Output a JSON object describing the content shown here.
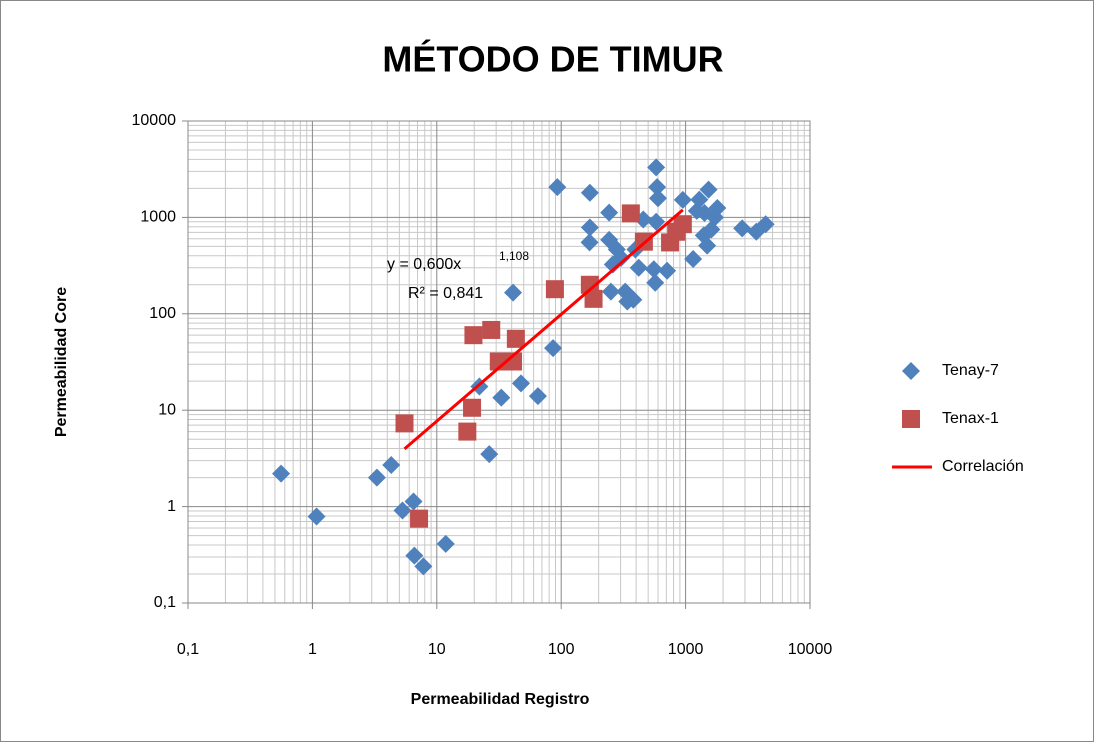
{
  "chart_data": {
    "type": "scatter",
    "title": "MÉTODO DE TIMUR",
    "xlabel": "Permeabilidad Registro",
    "ylabel": "Permeabilidad Core",
    "xscale": "log",
    "yscale": "log",
    "grid": true,
    "legend": "right",
    "xlim": [
      0.1,
      10000
    ],
    "ylim": [
      0.1,
      10000
    ],
    "xticks": [
      {
        "value": 0.1,
        "label": "0,1"
      },
      1,
      10,
      100,
      1000,
      10000
    ],
    "yticks": [
      {
        "value": 0.1,
        "label": "0,1"
      },
      1,
      10,
      100,
      1000,
      10000
    ],
    "annotations": {
      "equation": "y = 0,600x",
      "equation_exponent": "1,108",
      "r2": "R² = 0,841"
    },
    "series": [
      {
        "name": "Tenay-7",
        "color": "#4f81bd",
        "marker": "diamond",
        "x": [
          0.56,
          1.08,
          3.3,
          4.3,
          5.3,
          6.5,
          6.6,
          7.8,
          11.8,
          22,
          26.4,
          33,
          41,
          47.5,
          65,
          86,
          93,
          169,
          170,
          170,
          243,
          243,
          251,
          260,
          280,
          303,
          327,
          340,
          380,
          395,
          420,
          457,
          555,
          570,
          580,
          580,
          590,
          600,
          710,
          950,
          1150,
          1230,
          1290,
          1400,
          1420,
          1490,
          1530,
          1610,
          1720,
          1800,
          2850,
          3700,
          4400
        ],
        "values": [
          2.2,
          0.79,
          2.0,
          2.7,
          0.91,
          1.13,
          0.31,
          0.24,
          0.41,
          17.6,
          3.5,
          13.5,
          166,
          19,
          14,
          44,
          2060,
          550,
          785,
          1800,
          1120,
          585,
          170,
          325,
          465,
          380,
          170,
          134,
          140,
          465,
          300,
          950,
          290,
          210,
          3300,
          900,
          2060,
          1580,
          280,
          1520,
          370,
          1170,
          1530,
          650,
          1110,
          510,
          1940,
          750,
          1000,
          1250,
          770,
          710,
          850
        ]
      },
      {
        "name": "Tenax-1",
        "color": "#c0504d",
        "marker": "square",
        "x": [
          5.5,
          7.2,
          17.6,
          19.2,
          19.7,
          27.4,
          31.5,
          41,
          43.2,
          89,
          170,
          182,
          363,
          462,
          750,
          840,
          950
        ],
        "values": [
          7.3,
          0.75,
          6.0,
          10.6,
          60,
          68,
          32,
          32,
          55,
          180,
          200,
          143,
          1100,
          560,
          550,
          710,
          850
        ]
      },
      {
        "name": "Correlación",
        "color": "#ff0000",
        "marker": "line",
        "x": [
          5.5,
          950
        ],
        "values": [
          3.97,
          1196
        ]
      }
    ]
  }
}
